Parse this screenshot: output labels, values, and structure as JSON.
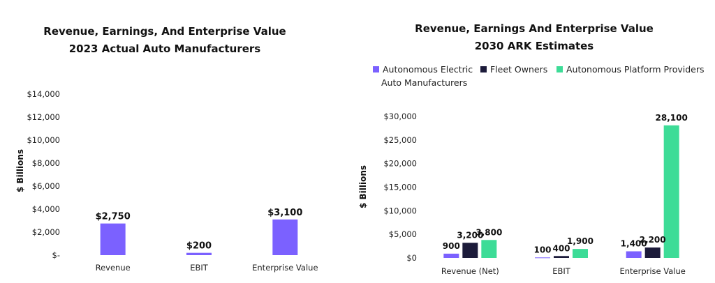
{
  "chart_data": [
    {
      "type": "bar",
      "title": "Revenue, Earnings, And Enterprise Value",
      "subtitle": "2023 Actual Auto Manufacturers",
      "ylabel": "$ Billions",
      "ylim": [
        0,
        14000
      ],
      "yticks": [
        "$-",
        "$2,000",
        "$4,000",
        "$6,000",
        "$8,000",
        "$10,000",
        "$12,000",
        "$14,000"
      ],
      "categories": [
        "Revenue",
        "EBIT",
        "Enterprise Value"
      ],
      "values": [
        2750,
        200,
        3100
      ],
      "value_labels": [
        "$2,750",
        "$200",
        "$3,100"
      ],
      "color": "#7b61ff",
      "grid": false
    },
    {
      "type": "bar",
      "title": "Revenue, Earnings And Enterprise Value",
      "subtitle": "2030 ARK Estimates",
      "ylabel": "$ Billions",
      "ylim": [
        0,
        30000
      ],
      "yticks": [
        "$0",
        "$5,000",
        "$10,000",
        "$15,000",
        "$20,000",
        "$25,000",
        "$30,000"
      ],
      "categories": [
        "Revenue (Net)",
        "EBIT",
        "Enterprise Value"
      ],
      "legend_position": "top",
      "grid": false,
      "series": [
        {
          "name": "Autonomous Electric Auto Manufacturers",
          "name_lines": [
            "Autonomous Electric",
            "Auto Manufacturers"
          ],
          "color": "#7b61ff",
          "values": [
            900,
            100,
            1400
          ],
          "value_labels": [
            "900",
            "100",
            "1,400"
          ]
        },
        {
          "name": "Fleet Owners",
          "name_lines": [
            "Fleet Owners"
          ],
          "color": "#1c1b3a",
          "values": [
            3200,
            400,
            2200
          ],
          "value_labels": [
            "3,200",
            "400",
            "2,200"
          ]
        },
        {
          "name": "Autonomous Platform Providers",
          "name_lines": [
            "Autonomous Platform Providers"
          ],
          "color": "#3ddc97",
          "values": [
            3800,
            1900,
            28100
          ],
          "value_labels": [
            "3,800",
            "1,900",
            "28,100"
          ]
        }
      ]
    }
  ]
}
